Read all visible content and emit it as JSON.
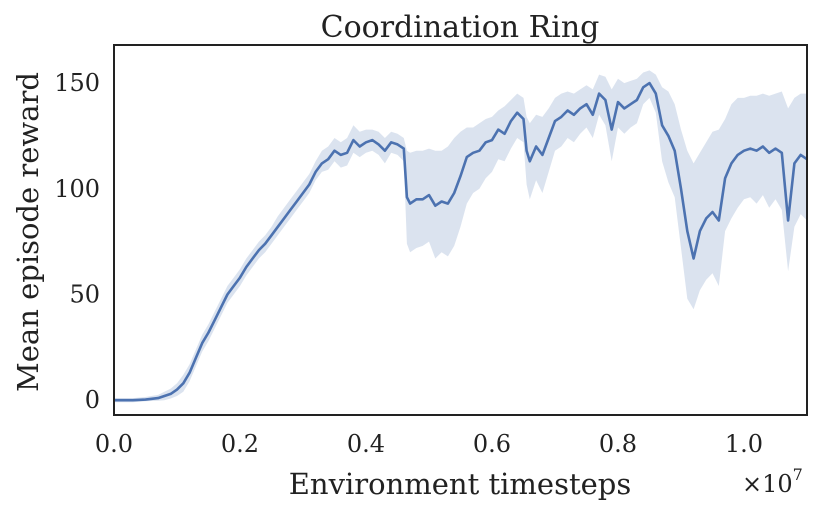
{
  "chart_data": {
    "type": "line",
    "title": "Coordination Ring",
    "xlabel": "Environment timesteps",
    "ylabel": "Mean episode reward",
    "x_offset_label": "×10",
    "x_offset_exponent": "7",
    "xlim": [
      0.0,
      1.1
    ],
    "ylim": [
      -7,
      168
    ],
    "xticks": [
      0.0,
      0.2,
      0.4,
      0.6,
      0.8,
      1.0
    ],
    "xtick_labels": [
      "0.0",
      "0.2",
      "0.4",
      "0.6",
      "0.8",
      "1.0"
    ],
    "yticks": [
      0,
      50,
      100,
      150
    ],
    "ytick_labels": [
      "0",
      "50",
      "100",
      "150"
    ],
    "grid": false,
    "colors": {
      "line": "#4c72b0",
      "band": "#dbe3ef",
      "axes": "#222222"
    },
    "series": [
      {
        "x": [
          0.0,
          0.03,
          0.05,
          0.07,
          0.08,
          0.09,
          0.1,
          0.11,
          0.12,
          0.13,
          0.14,
          0.15,
          0.16,
          0.17,
          0.18,
          0.19,
          0.2,
          0.21,
          0.22,
          0.23,
          0.24,
          0.25,
          0.26,
          0.27,
          0.28,
          0.29,
          0.3,
          0.31,
          0.32,
          0.33,
          0.34,
          0.35,
          0.36,
          0.37,
          0.38,
          0.39,
          0.4,
          0.41,
          0.42,
          0.43,
          0.44,
          0.45,
          0.46,
          0.465,
          0.47,
          0.48,
          0.49,
          0.5,
          0.51,
          0.52,
          0.53,
          0.54,
          0.55,
          0.56,
          0.57,
          0.58,
          0.59,
          0.6,
          0.61,
          0.62,
          0.63,
          0.64,
          0.65,
          0.655,
          0.66,
          0.67,
          0.68,
          0.69,
          0.7,
          0.71,
          0.72,
          0.73,
          0.74,
          0.75,
          0.76,
          0.77,
          0.78,
          0.79,
          0.8,
          0.81,
          0.82,
          0.83,
          0.84,
          0.85,
          0.86,
          0.87,
          0.88,
          0.89,
          0.9,
          0.91,
          0.92,
          0.93,
          0.94,
          0.95,
          0.96,
          0.97,
          0.98,
          0.99,
          1.0,
          1.01,
          1.02,
          1.03,
          1.04,
          1.05,
          1.06,
          1.07,
          1.08,
          1.09,
          1.1
        ],
        "values": [
          0,
          0,
          0.3,
          1,
          2,
          3,
          5,
          8,
          13,
          20,
          27,
          32,
          38,
          44,
          50,
          54,
          58,
          63,
          67,
          71,
          74,
          78,
          82,
          86,
          90,
          94,
          98,
          102,
          108,
          112,
          114,
          118,
          116,
          117,
          123,
          120,
          122,
          123,
          121,
          118,
          122,
          121,
          119,
          96,
          93,
          95,
          95,
          97,
          92,
          94,
          93,
          98,
          106,
          115,
          117,
          118,
          122,
          123,
          128,
          126,
          132,
          136,
          133,
          118,
          113,
          120,
          116,
          124,
          132,
          134,
          137,
          135,
          138,
          140,
          135,
          145,
          142,
          128,
          141,
          138,
          140,
          142,
          148,
          150,
          145,
          130,
          125,
          118,
          100,
          80,
          67,
          80,
          86,
          89,
          85,
          105,
          112,
          116,
          118,
          119,
          118,
          120,
          117,
          119,
          117,
          85,
          112,
          116,
          114
        ],
        "band_upper": [
          1,
          1,
          1.5,
          2.5,
          4,
          5.5,
          8,
          12,
          17,
          24,
          31,
          36,
          42,
          48,
          54,
          58,
          62,
          67,
          71,
          75,
          78,
          82,
          87,
          91,
          95,
          99,
          103,
          107,
          113,
          118,
          120,
          124,
          122,
          124,
          130,
          127,
          128,
          128,
          127,
          124,
          127,
          126,
          124,
          118,
          117,
          118,
          118,
          119,
          118,
          118,
          120,
          124,
          127,
          129,
          129,
          131,
          133,
          134,
          137,
          139,
          142,
          145,
          143,
          134,
          131,
          135,
          134,
          138,
          143,
          145,
          146,
          145,
          147,
          149,
          147,
          154,
          153,
          147,
          152,
          150,
          151,
          152,
          155,
          156,
          154,
          148,
          146,
          140,
          128,
          118,
          112,
          117,
          122,
          127,
          128,
          133,
          140,
          143,
          143,
          144,
          144,
          145,
          144,
          145,
          146,
          138,
          143,
          145,
          145
        ],
        "band_lower": [
          -1,
          -1,
          -0.5,
          -0.3,
          0,
          0.8,
          2,
          4,
          9,
          16,
          23,
          28,
          34,
          40,
          46,
          50,
          54,
          59,
          63,
          67,
          70,
          74,
          78,
          82,
          86,
          90,
          94,
          98,
          104,
          108,
          109,
          113,
          110,
          111,
          117,
          115,
          117,
          118,
          116,
          112,
          117,
          116,
          113,
          74,
          70,
          72,
          73,
          75,
          67,
          70,
          68,
          73,
          82,
          93,
          98,
          100,
          105,
          108,
          114,
          113,
          119,
          124,
          122,
          102,
          95,
          104,
          98,
          108,
          118,
          120,
          124,
          122,
          126,
          129,
          124,
          135,
          130,
          113,
          129,
          126,
          129,
          131,
          140,
          143,
          136,
          113,
          103,
          96,
          72,
          48,
          43,
          52,
          57,
          60,
          54,
          80,
          86,
          91,
          95,
          96,
          93,
          97,
          91,
          95,
          90,
          61,
          82,
          88,
          85
        ]
      }
    ]
  }
}
